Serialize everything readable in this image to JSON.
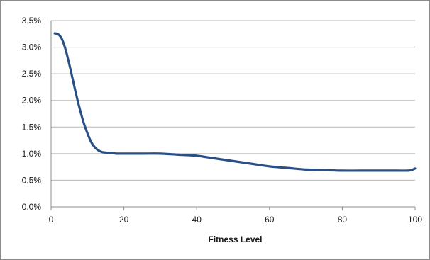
{
  "chart_data": {
    "type": "line",
    "title": "",
    "xlabel": "Fitness Level",
    "ylabel": "",
    "xlim": [
      0,
      100
    ],
    "ylim": [
      0.0,
      0.035
    ],
    "x_ticks": [
      0,
      20,
      40,
      60,
      80,
      100
    ],
    "y_ticks": [
      0.0,
      0.005,
      0.01,
      0.015,
      0.02,
      0.025,
      0.03,
      0.035
    ],
    "y_tick_labels": [
      "0.0%",
      "0.5%",
      "1.0%",
      "1.5%",
      "2.0%",
      "2.5%",
      "3.0%",
      "3.5%"
    ],
    "grid": "horizontal",
    "legend": "none",
    "colors": {
      "line": "#2a4f86",
      "grid": "#b7b7b7",
      "axis": "#8c8c8c"
    },
    "series": [
      {
        "x": [
          1,
          2,
          3,
          4,
          5,
          6,
          7,
          8,
          9,
          10,
          11,
          12,
          13,
          14,
          15,
          16,
          17,
          18,
          20,
          25,
          30,
          35,
          40,
          45,
          50,
          55,
          60,
          65,
          70,
          75,
          80,
          85,
          90,
          95,
          98,
          99,
          100
        ],
        "values": [
          0.0326,
          0.0324,
          0.0315,
          0.0295,
          0.0268,
          0.0238,
          0.0208,
          0.0181,
          0.0157,
          0.0138,
          0.0122,
          0.0112,
          0.0106,
          0.0103,
          0.0102,
          0.0101,
          0.0101,
          0.01,
          0.01,
          0.01,
          0.01,
          0.0098,
          0.0096,
          0.0091,
          0.0086,
          0.0081,
          0.0076,
          0.0073,
          0.007,
          0.0069,
          0.0068,
          0.0068,
          0.0068,
          0.0068,
          0.0068,
          0.0069,
          0.0072
        ]
      }
    ]
  }
}
